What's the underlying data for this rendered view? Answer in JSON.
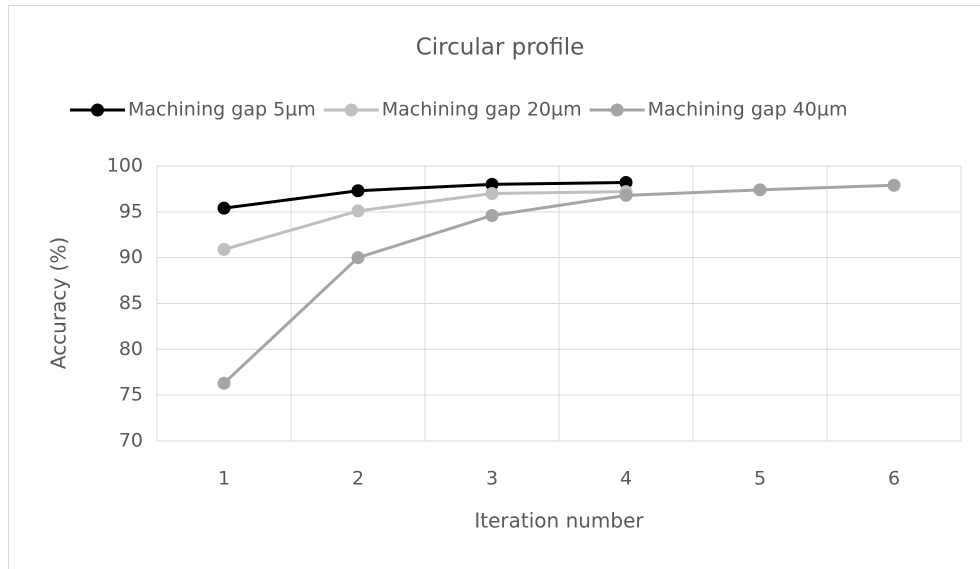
{
  "chart_data": {
    "type": "line",
    "title": "Circular profile",
    "x_label": "Iteration number",
    "y_label": "Accuracy (%)",
    "categories": [
      "1",
      "2",
      "3",
      "4",
      "5",
      "6"
    ],
    "series": [
      {
        "name": "Machining gap 5µm",
        "color": "#000000",
        "values": [
          95.4,
          97.3,
          98.0,
          98.2,
          null,
          null
        ]
      },
      {
        "name": "Machining gap 20µm",
        "color": "#bfbfbf",
        "values": [
          90.9,
          95.1,
          97.0,
          97.2,
          null,
          null
        ]
      },
      {
        "name": "Machining gap 40µm",
        "color": "#a5a5a5",
        "values": [
          76.3,
          90.0,
          94.6,
          96.8,
          97.4,
          97.9
        ]
      }
    ],
    "ylim": [
      70,
      100
    ],
    "yticks": [
      70,
      75,
      80,
      85,
      90,
      95,
      100
    ],
    "grid": true,
    "legend": "top"
  }
}
